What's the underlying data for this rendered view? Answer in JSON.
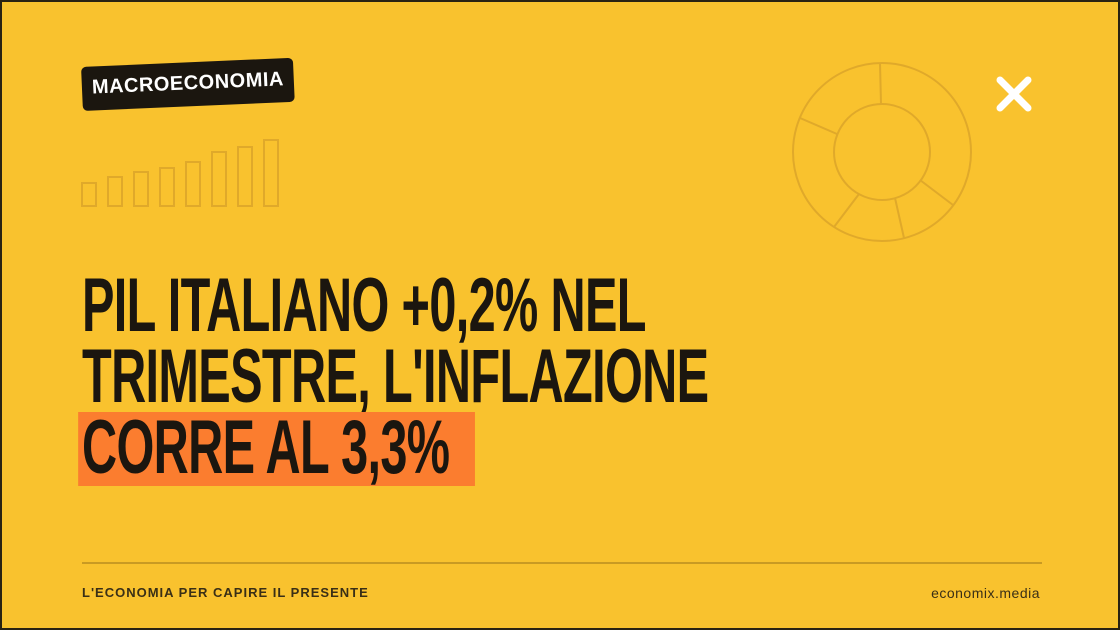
{
  "tag": "MACROECONOMIA",
  "headline": {
    "lines": [
      "PIL ITALIANO +0,2% NEL",
      "TRIMESTRE, L'INFLAZIONE",
      "CORRE AL 3,3%"
    ]
  },
  "footer": {
    "tagline": "L'ECONOMIA PER CAPIRE IL PRESENTE",
    "site": "economix.media"
  }
}
